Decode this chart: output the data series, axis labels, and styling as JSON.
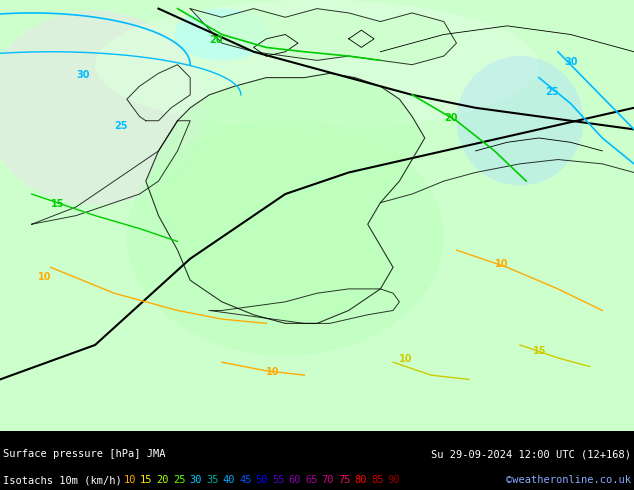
{
  "title_line1": "Surface pressure [hPa] JMA",
  "title_line2": "Isotachs 10m (km/h)",
  "date_str": "Su 29-09-2024 12:00 UTC (12+168)",
  "credit": "©weatheronline.co.uk",
  "legend_values": [
    10,
    15,
    20,
    25,
    30,
    35,
    40,
    45,
    50,
    55,
    60,
    65,
    70,
    75,
    80,
    85,
    90
  ],
  "legend_colors": [
    "#ffaa00",
    "#ffcc00",
    "#aaff00",
    "#55ff00",
    "#00ff00",
    "#00ffaa",
    "#00ffcc",
    "#00ccff",
    "#0099ff",
    "#0055ff",
    "#0000ff",
    "#5500ff",
    "#8800ff",
    "#aa00ff",
    "#ff00ff",
    "#ff0055",
    "#ff0000"
  ],
  "background_color": "#aaffaa",
  "map_bg_light": "#ddffdd",
  "contour_color_cyan": "#00ccff",
  "contour_color_green": "#00cc00",
  "contour_color_blue": "#0000ff",
  "contour_color_black": "#000000",
  "contour_color_yellow": "#cccc00",
  "text_color": "#000000",
  "fig_width": 6.34,
  "fig_height": 4.9,
  "dpi": 100,
  "bottom_bar_height": 0.12,
  "bottom_bar_color": "#000000",
  "bottom_text_color": "#ffffff",
  "isotach_legend_colors": {
    "10": "#ffaa00",
    "15": "#ffee00",
    "20": "#aaff00",
    "25": "#55ff00",
    "30": "#00ccff",
    "35": "#009999",
    "40": "#00aaff",
    "45": "#0055ff",
    "50": "#0000ff",
    "55": "#3300cc",
    "60": "#6600aa",
    "65": "#990099",
    "70": "#cc0099",
    "75": "#ff0066",
    "80": "#ff0000",
    "85": "#cc0000",
    "90": "#990000"
  }
}
